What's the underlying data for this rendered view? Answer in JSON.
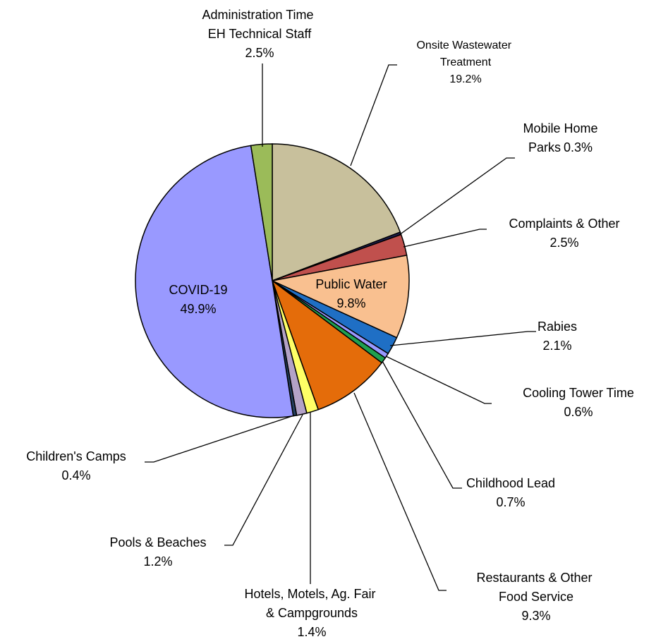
{
  "chart_data": {
    "type": "pie",
    "categories": [
      "Onsite Wastewater Treatment",
      "Mobile Home Parks",
      "Complaints & Other",
      "Public Water",
      "Rabies",
      "Cooling Tower Time",
      "Childhood Lead",
      "Restaurants & Other Food Service",
      "Hotels, Motels, Ag. Fair & Campgrounds",
      "Pools & Beaches",
      "Children's Camps",
      "COVID-19",
      "Administration Time EH Technical Staff"
    ],
    "values": [
      19.2,
      0.3,
      2.5,
      9.8,
      2.1,
      0.6,
      0.7,
      9.3,
      1.4,
      1.2,
      0.4,
      49.9,
      2.5
    ],
    "value_labels": [
      "19.2%",
      "0.3%",
      "2.5%",
      "9.8%",
      "2.1%",
      "0.6%",
      "0.7%",
      "9.3%",
      "1.4%",
      "1.2%",
      "0.4%",
      "49.9%",
      "2.5%"
    ],
    "colors": [
      "#c8c09c",
      "#1f1f4f",
      "#c0504d",
      "#f9c090",
      "#1f6fc5",
      "#9999ff",
      "#1fa050",
      "#e46c0a",
      "#ffff66",
      "#b3a2c7",
      "#254061",
      "#9999ff",
      "#9bbb59"
    ]
  }
}
